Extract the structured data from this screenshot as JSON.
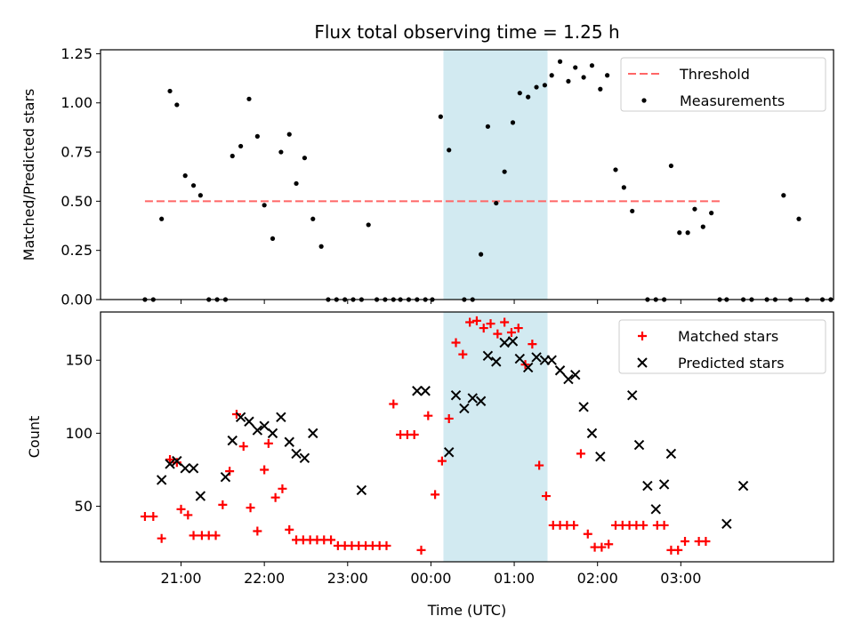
{
  "chart_data": [
    {
      "type": "scatter",
      "title": "Flux total observing time = 1.25 h",
      "xlabel": "",
      "ylabel": "Matched/Predicted stars",
      "ylim": [
        0,
        1.27
      ],
      "yticks": [
        "0.00",
        "0.25",
        "0.50",
        "0.75",
        "1.00",
        "1.25"
      ],
      "shaded_region": {
        "x_start": "00:09",
        "x_end": "01:24",
        "color": "#add8e6"
      },
      "legend_position": "top-right",
      "threshold": {
        "name": "Threshold",
        "value": 0.5,
        "x_start": "20:34",
        "x_end": "03:29",
        "color": "#ff6666",
        "style": "dashed"
      },
      "series": [
        {
          "name": "Measurements",
          "color": "#000000",
          "marker": "dot",
          "points": [
            [
              "20:34",
              0.0
            ],
            [
              "20:40",
              0.0
            ],
            [
              "20:46",
              0.41
            ],
            [
              "20:52",
              1.06
            ],
            [
              "20:57",
              0.99
            ],
            [
              "21:03",
              0.63
            ],
            [
              "21:09",
              0.58
            ],
            [
              "21:14",
              0.53
            ],
            [
              "21:20",
              0.0
            ],
            [
              "21:26",
              0.0
            ],
            [
              "21:32",
              0.0
            ],
            [
              "21:37",
              0.73
            ],
            [
              "21:43",
              0.78
            ],
            [
              "21:49",
              1.02
            ],
            [
              "21:55",
              0.83
            ],
            [
              "22:00",
              0.48
            ],
            [
              "22:06",
              0.31
            ],
            [
              "22:12",
              0.75
            ],
            [
              "22:18",
              0.84
            ],
            [
              "22:23",
              0.59
            ],
            [
              "22:29",
              0.72
            ],
            [
              "22:35",
              0.41
            ],
            [
              "22:41",
              0.27
            ],
            [
              "22:46",
              0.0
            ],
            [
              "22:52",
              0.0
            ],
            [
              "22:58",
              0.0
            ],
            [
              "23:04",
              0.0
            ],
            [
              "23:10",
              0.0
            ],
            [
              "23:15",
              0.38
            ],
            [
              "23:21",
              0.0
            ],
            [
              "23:27",
              0.0
            ],
            [
              "23:33",
              0.0
            ],
            [
              "23:38",
              0.0
            ],
            [
              "23:44",
              0.0
            ],
            [
              "23:50",
              0.0
            ],
            [
              "23:56",
              0.0
            ],
            [
              "24:01",
              0.0
            ],
            [
              "24:07",
              0.93
            ],
            [
              "24:13",
              0.76
            ],
            [
              "24:24",
              0.0
            ],
            [
              "24:30",
              0.0
            ],
            [
              "24:36",
              0.23
            ],
            [
              "24:41",
              0.88
            ],
            [
              "24:47",
              0.49
            ],
            [
              "24:53",
              0.65
            ],
            [
              "24:59",
              0.9
            ],
            [
              "25:04",
              1.05
            ],
            [
              "25:10",
              1.03
            ],
            [
              "25:16",
              1.08
            ],
            [
              "25:22",
              1.09
            ],
            [
              "25:27",
              1.14
            ],
            [
              "25:33",
              1.21
            ],
            [
              "25:39",
              1.11
            ],
            [
              "25:44",
              1.18
            ],
            [
              "25:50",
              1.13
            ],
            [
              "25:56",
              1.19
            ],
            [
              "26:02",
              1.07
            ],
            [
              "26:07",
              1.14
            ],
            [
              "26:13",
              0.66
            ],
            [
              "26:19",
              0.57
            ],
            [
              "26:25",
              0.45
            ],
            [
              "26:36",
              0.0
            ],
            [
              "26:42",
              0.0
            ],
            [
              "26:48",
              0.0
            ],
            [
              "26:53",
              0.68
            ],
            [
              "26:59",
              0.34
            ],
            [
              "27:05",
              0.34
            ],
            [
              "27:10",
              0.46
            ],
            [
              "27:16",
              0.37
            ],
            [
              "27:22",
              0.44
            ],
            [
              "27:28",
              0.0
            ],
            [
              "27:33",
              0.0
            ],
            [
              "27:45",
              0.0
            ],
            [
              "27:51",
              0.0
            ],
            [
              "28:02",
              0.0
            ],
            [
              "28:08",
              0.0
            ],
            [
              "28:14",
              0.53
            ],
            [
              "28:19",
              0.0
            ],
            [
              "28:25",
              0.41
            ],
            [
              "28:31",
              0.0
            ],
            [
              "28:42",
              0.0
            ],
            [
              "28:48",
              0.0
            ]
          ]
        }
      ]
    },
    {
      "type": "scatter",
      "title": "",
      "xlabel": "Time (UTC)",
      "ylabel": "Count",
      "ylim": [
        12,
        183
      ],
      "yticks": [
        "50",
        "100",
        "150"
      ],
      "xticks": [
        "21:00",
        "22:00",
        "23:00",
        "00:00",
        "01:00",
        "02:00",
        "03:00"
      ],
      "shaded_region": {
        "x_start": "00:09",
        "x_end": "01:24",
        "color": "#add8e6"
      },
      "legend_position": "top-right",
      "series": [
        {
          "name": "Matched stars",
          "color": "#ff0000",
          "marker": "plus",
          "points": [
            [
              "20:34",
              43
            ],
            [
              "20:40",
              43
            ],
            [
              "20:46",
              28
            ],
            [
              "20:52",
              82
            ],
            [
              "20:57",
              80
            ],
            [
              "21:00",
              48
            ],
            [
              "21:05",
              44
            ],
            [
              "21:09",
              30
            ],
            [
              "21:15",
              30
            ],
            [
              "21:20",
              30
            ],
            [
              "21:25",
              30
            ],
            [
              "21:30",
              51
            ],
            [
              "21:35",
              74
            ],
            [
              "21:40",
              113
            ],
            [
              "21:45",
              91
            ],
            [
              "21:50",
              49
            ],
            [
              "21:55",
              33
            ],
            [
              "22:00",
              75
            ],
            [
              "22:03",
              93
            ],
            [
              "22:08",
              56
            ],
            [
              "22:13",
              62
            ],
            [
              "22:18",
              34
            ],
            [
              "22:23",
              27
            ],
            [
              "22:28",
              27
            ],
            [
              "22:33",
              27
            ],
            [
              "22:38",
              27
            ],
            [
              "22:43",
              27
            ],
            [
              "22:48",
              27
            ],
            [
              "22:53",
              23
            ],
            [
              "22:58",
              23
            ],
            [
              "23:03",
              23
            ],
            [
              "23:08",
              23
            ],
            [
              "23:13",
              23
            ],
            [
              "23:18",
              23
            ],
            [
              "23:23",
              23
            ],
            [
              "23:28",
              23
            ],
            [
              "23:33",
              120
            ],
            [
              "23:38",
              99
            ],
            [
              "23:43",
              99
            ],
            [
              "23:48",
              99
            ],
            [
              "23:53",
              20
            ],
            [
              "23:58",
              112
            ],
            [
              "24:03",
              58
            ],
            [
              "24:08",
              81
            ],
            [
              "24:13",
              110
            ],
            [
              "24:18",
              162
            ],
            [
              "24:23",
              154
            ],
            [
              "24:28",
              176
            ],
            [
              "24:33",
              177
            ],
            [
              "24:38",
              172
            ],
            [
              "24:43",
              175
            ],
            [
              "24:48",
              168
            ],
            [
              "24:53",
              176
            ],
            [
              "24:58",
              169
            ],
            [
              "25:03",
              172
            ],
            [
              "25:08",
              147
            ],
            [
              "25:13",
              161
            ],
            [
              "25:18",
              78
            ],
            [
              "25:23",
              57
            ],
            [
              "25:28",
              37
            ],
            [
              "25:33",
              37
            ],
            [
              "25:38",
              37
            ],
            [
              "25:43",
              37
            ],
            [
              "25:48",
              86
            ],
            [
              "25:53",
              31
            ],
            [
              "25:58",
              22
            ],
            [
              "26:03",
              22
            ],
            [
              "26:08",
              24
            ],
            [
              "26:13",
              37
            ],
            [
              "26:18",
              37
            ],
            [
              "26:23",
              37
            ],
            [
              "26:28",
              37
            ],
            [
              "26:33",
              37
            ],
            [
              "26:43",
              37
            ],
            [
              "26:48",
              37
            ],
            [
              "26:53",
              20
            ],
            [
              "26:58",
              20
            ],
            [
              "27:03",
              26
            ],
            [
              "27:13",
              26
            ],
            [
              "27:18",
              26
            ]
          ]
        },
        {
          "name": "Predicted stars",
          "color": "#000000",
          "marker": "x",
          "points": [
            [
              "20:46",
              68
            ],
            [
              "20:52",
              79
            ],
            [
              "20:57",
              81
            ],
            [
              "21:03",
              76
            ],
            [
              "21:09",
              76
            ],
            [
              "21:14",
              57
            ],
            [
              "21:32",
              70
            ],
            [
              "21:37",
              95
            ],
            [
              "21:43",
              111
            ],
            [
              "21:49",
              108
            ],
            [
              "21:55",
              102
            ],
            [
              "22:00",
              105
            ],
            [
              "22:06",
              100
            ],
            [
              "22:12",
              111
            ],
            [
              "22:18",
              94
            ],
            [
              "22:23",
              86
            ],
            [
              "22:29",
              83
            ],
            [
              "22:35",
              100
            ],
            [
              "23:10",
              61
            ],
            [
              "23:50",
              129
            ],
            [
              "23:56",
              129
            ],
            [
              "24:13",
              87
            ],
            [
              "24:18",
              126
            ],
            [
              "24:24",
              117
            ],
            [
              "24:30",
              124
            ],
            [
              "24:36",
              122
            ],
            [
              "24:41",
              153
            ],
            [
              "24:47",
              149
            ],
            [
              "24:53",
              162
            ],
            [
              "24:59",
              163
            ],
            [
              "25:04",
              151
            ],
            [
              "25:10",
              145
            ],
            [
              "25:16",
              152
            ],
            [
              "25:22",
              150
            ],
            [
              "25:27",
              150
            ],
            [
              "25:33",
              143
            ],
            [
              "25:39",
              137
            ],
            [
              "25:44",
              140
            ],
            [
              "25:50",
              118
            ],
            [
              "25:56",
              100
            ],
            [
              "26:02",
              84
            ],
            [
              "26:25",
              126
            ],
            [
              "26:30",
              92
            ],
            [
              "26:36",
              64
            ],
            [
              "26:42",
              48
            ],
            [
              "26:48",
              65
            ],
            [
              "26:53",
              86
            ],
            [
              "27:33",
              38
            ],
            [
              "27:45",
              64
            ]
          ]
        }
      ]
    }
  ]
}
